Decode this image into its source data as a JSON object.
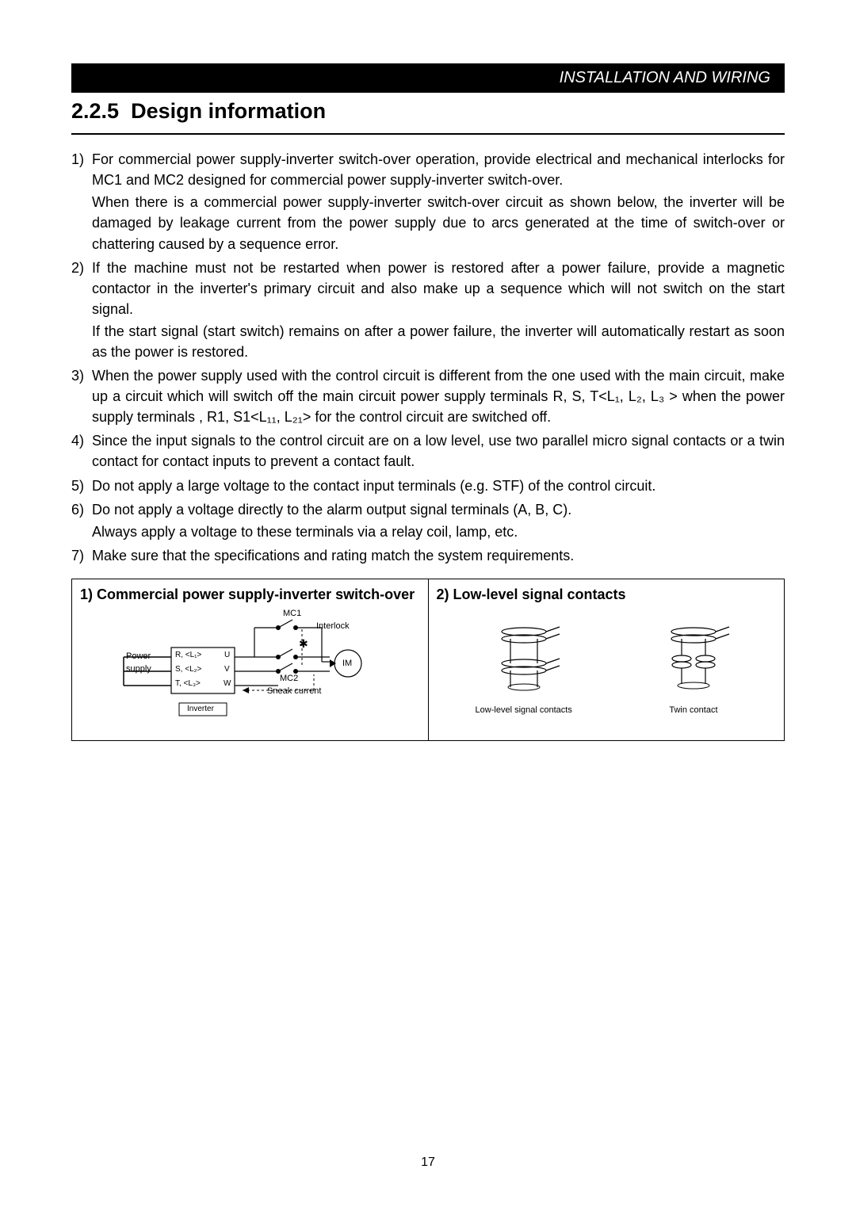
{
  "header": {
    "text": "INSTALLATION AND WIRING"
  },
  "section": {
    "number": "2.2.5",
    "title": "Design information"
  },
  "items": [
    {
      "num": "1)",
      "paragraphs": [
        "For commercial power supply-inverter switch-over operation, provide electrical and mechanical interlocks for MC1 and MC2 designed for commercial power supply-inverter switch-over.",
        "When there is a commercial power supply-inverter switch-over circuit as shown below, the inverter will be damaged by leakage current from the power supply due to arcs generated at the time of switch-over or chattering caused by a sequence error."
      ]
    },
    {
      "num": "2)",
      "paragraphs": [
        "If the machine must not be restarted when power is restored after a power failure, provide a magnetic contactor in the inverter's primary circuit and also make up a sequence which will not switch on the start signal.",
        "If the start signal (start switch) remains on after a power failure, the inverter will automatically restart as soon as the power is restored."
      ]
    },
    {
      "num": "3)",
      "paragraphs": [
        "When the power supply used with the control circuit is different from the one used with the main circuit, make up a circuit which will switch off the main circuit power supply terminals R, S, T<L₁, L₂, L₃ > when the power supply terminals , R1, S1<L₁₁, L₂₁> for the control circuit are switched off."
      ]
    },
    {
      "num": "4)",
      "paragraphs": [
        "Since the input signals to the control circuit are on a low level, use two parallel micro signal contacts or a twin contact for contact inputs to prevent a contact fault."
      ]
    },
    {
      "num": "5)",
      "paragraphs": [
        "Do not apply a large voltage to the contact input terminals (e.g. STF) of the control circuit."
      ]
    },
    {
      "num": "6)",
      "paragraphs": [
        "Do not apply a voltage directly to the alarm output signal terminals (A, B, C).",
        "Always apply a voltage to these terminals via a relay coil, lamp, etc."
      ]
    },
    {
      "num": "7)",
      "paragraphs": [
        "Make sure that the specifications and rating match the system requirements."
      ]
    }
  ],
  "diagrams": {
    "left": {
      "title": "1) Commercial power supply-inverter switch-over",
      "labels": {
        "mc1": "MC1",
        "mc2": "MC2",
        "interlock": "Interlock",
        "power_supply": "Power\nsupply",
        "sneak_current": "Sneak current",
        "inverter": "Inverter",
        "im": "IM",
        "r": "R, <L₁>",
        "s": "S, <L₂>",
        "t": "T, <L₃>",
        "u": "U",
        "v": "V",
        "w": "W"
      }
    },
    "right": {
      "title": "2) Low-level signal contacts",
      "labels": {
        "left_caption": "Low-level signal contacts",
        "right_caption": "Twin contact"
      }
    }
  },
  "page_number": "17"
}
